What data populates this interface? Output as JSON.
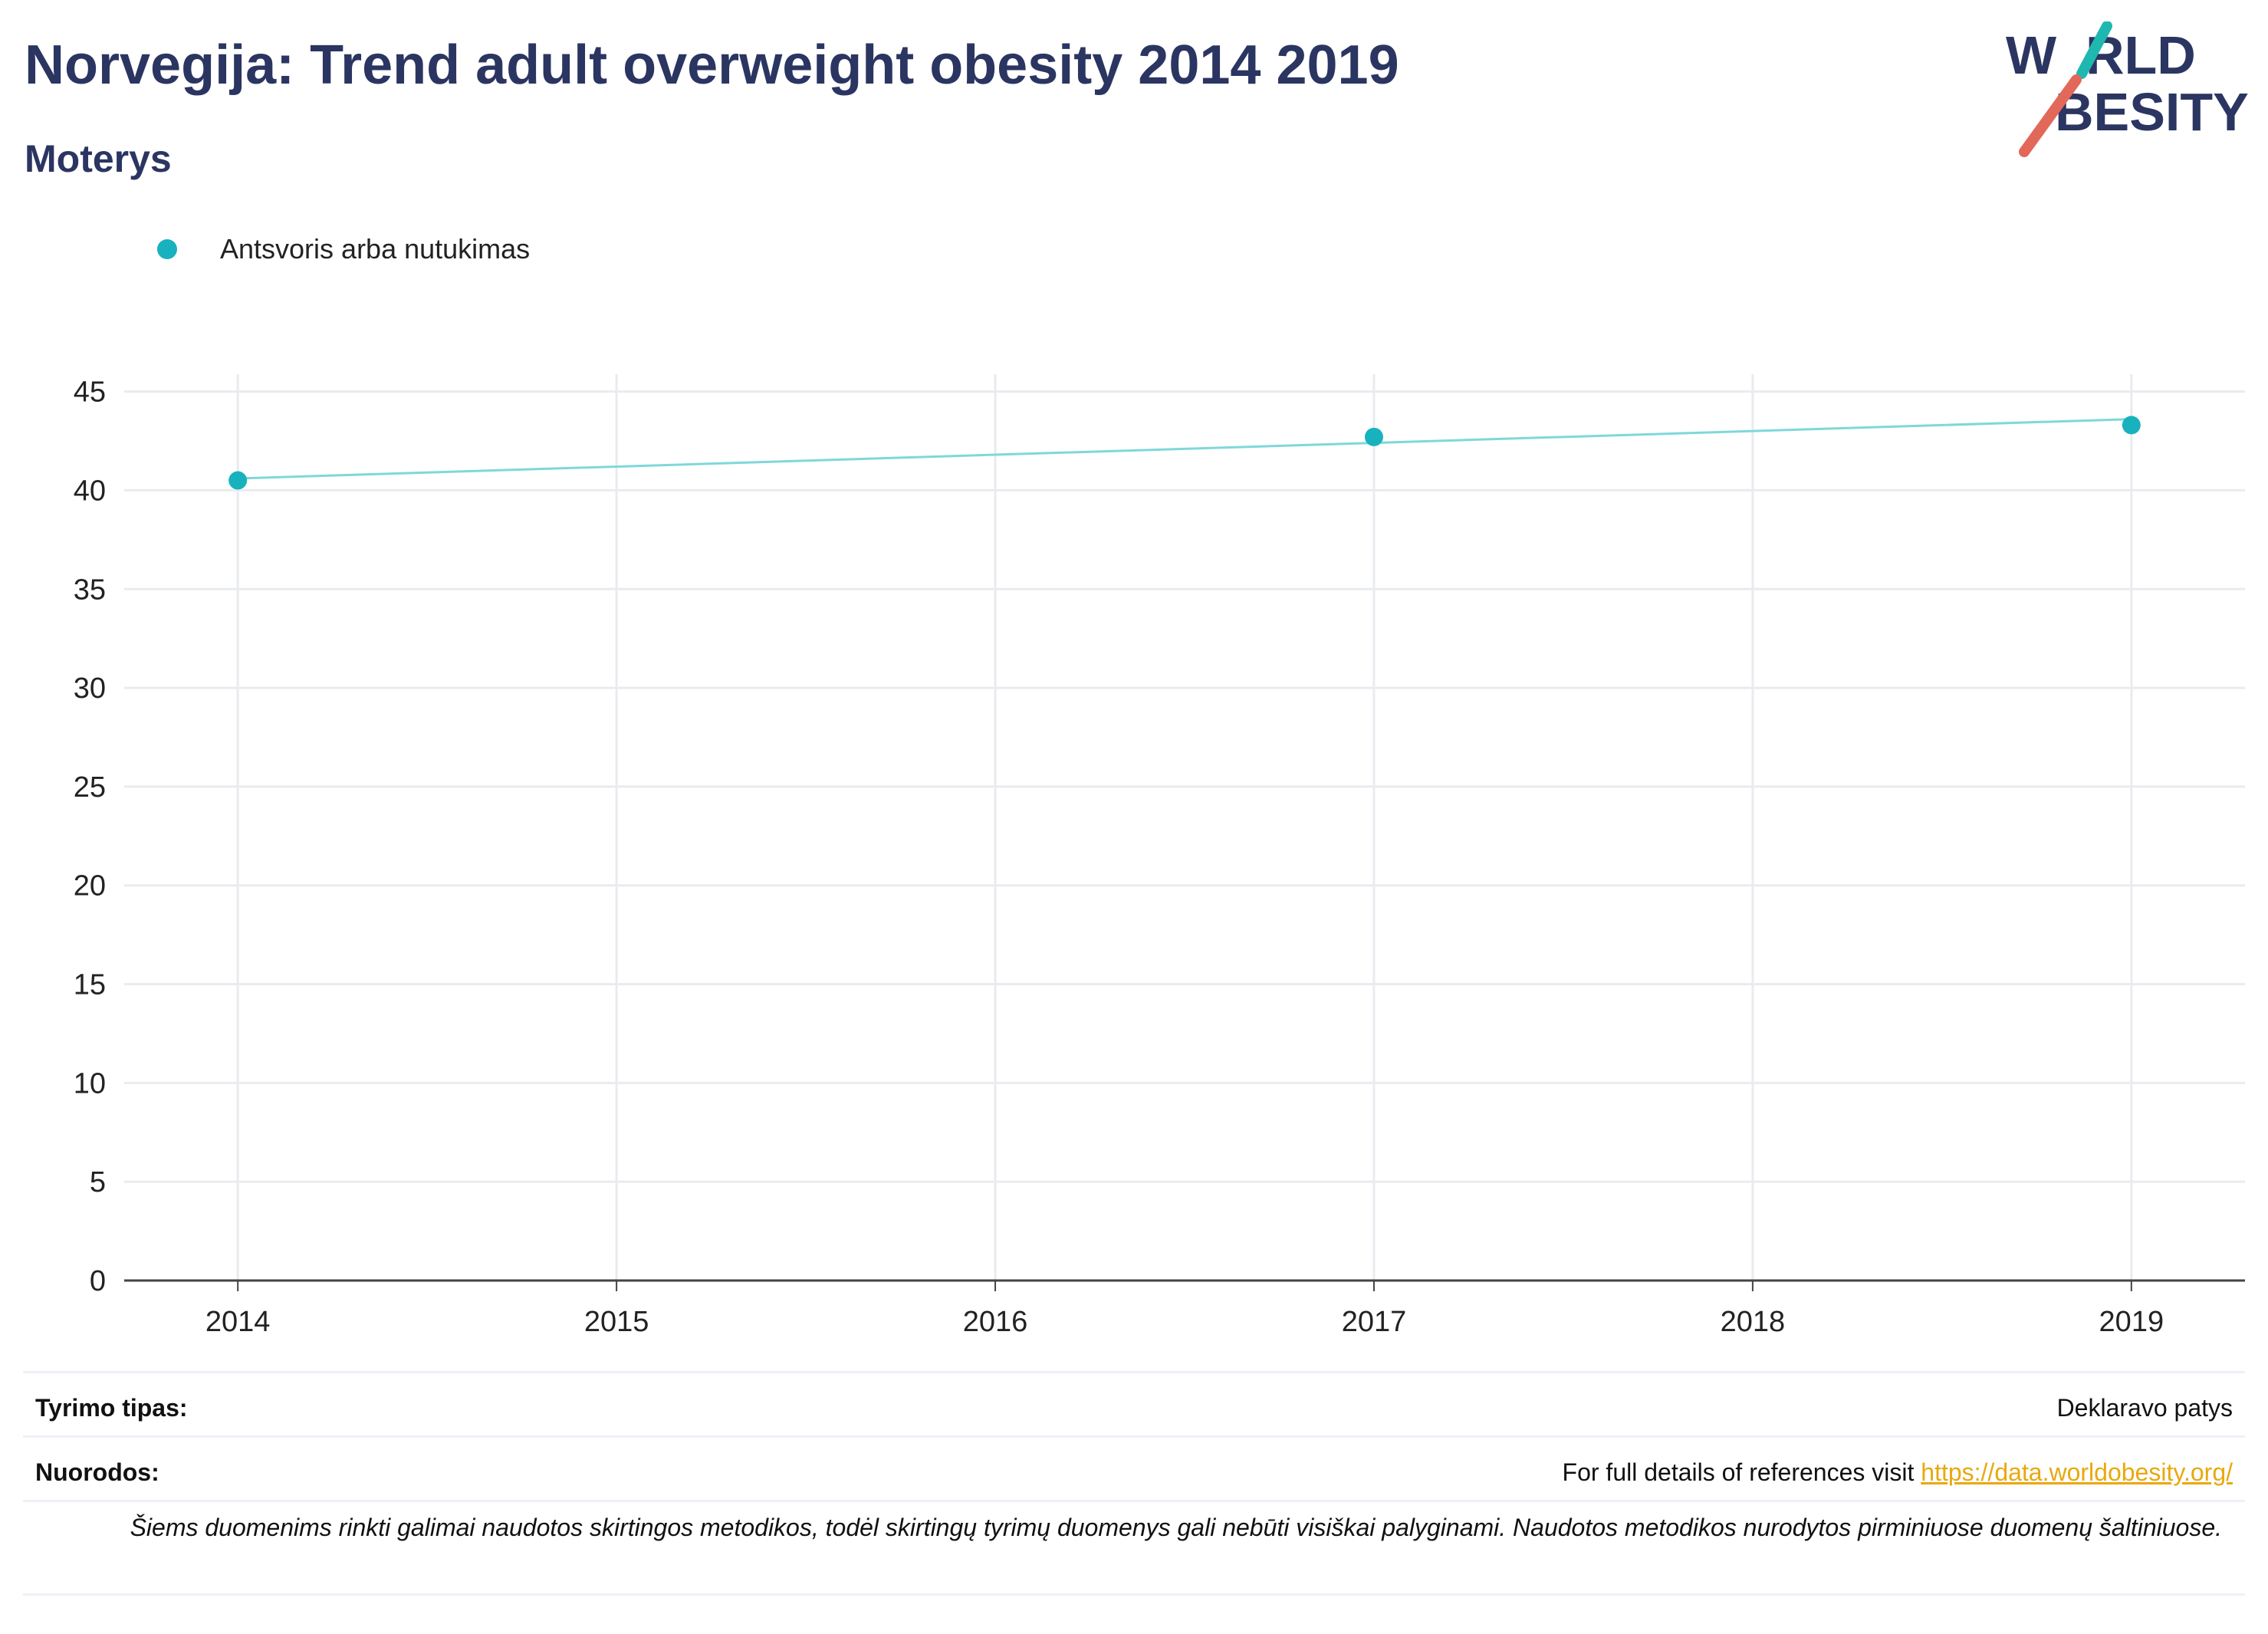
{
  "header": {
    "title": "Norvegija: Trend adult overweight obesity 2014 2019",
    "subtitle": "Moterys"
  },
  "logo": {
    "line1": "W  RLD",
    "line2": "  BESITY",
    "text": "WORLD OBESITY",
    "colors": {
      "text": "#2b3561",
      "teal_slash": "#1fb8b0",
      "red_slash": "#e2685a"
    }
  },
  "legend": {
    "items": [
      {
        "label": "Antsvoris arba nutukimas",
        "color": "#17b2be"
      }
    ]
  },
  "chart_data": {
    "type": "line",
    "x": [
      2014,
      2017,
      2019
    ],
    "series": [
      {
        "name": "Antsvoris arba nutukimas",
        "values": [
          40.5,
          42.7,
          43.3
        ],
        "trend": [
          40.6,
          42.4,
          43.6
        ],
        "color": "#17b2be",
        "line_color": "#7fd8d8"
      }
    ],
    "xticks": [
      "2014",
      "2015",
      "2016",
      "2017",
      "2018",
      "2019"
    ],
    "yticks": [
      "0",
      "5",
      "10",
      "15",
      "20",
      "25",
      "30",
      "35",
      "40",
      "45"
    ],
    "xlim": [
      2013.7,
      2019.3
    ],
    "ylim": [
      0,
      45.8
    ],
    "grid": true,
    "legend_position": "top-left"
  },
  "info": {
    "survey_type_label": "Tyrimo tipas:",
    "survey_type_value": "Deklaravo patys",
    "references_label": "Nuorodos:",
    "references_text": "For full details of references visit ",
    "references_link": "https://data.worldobesity.org/",
    "note": "Šiems duomenims rinkti galimai naudotos skirtingos metodikos, todėl skirtingų tyrimų duomenys gali nebūti visiškai palyginami. Naudotos metodikos nurodytos pirminiuose duomenų šaltiniuose."
  }
}
